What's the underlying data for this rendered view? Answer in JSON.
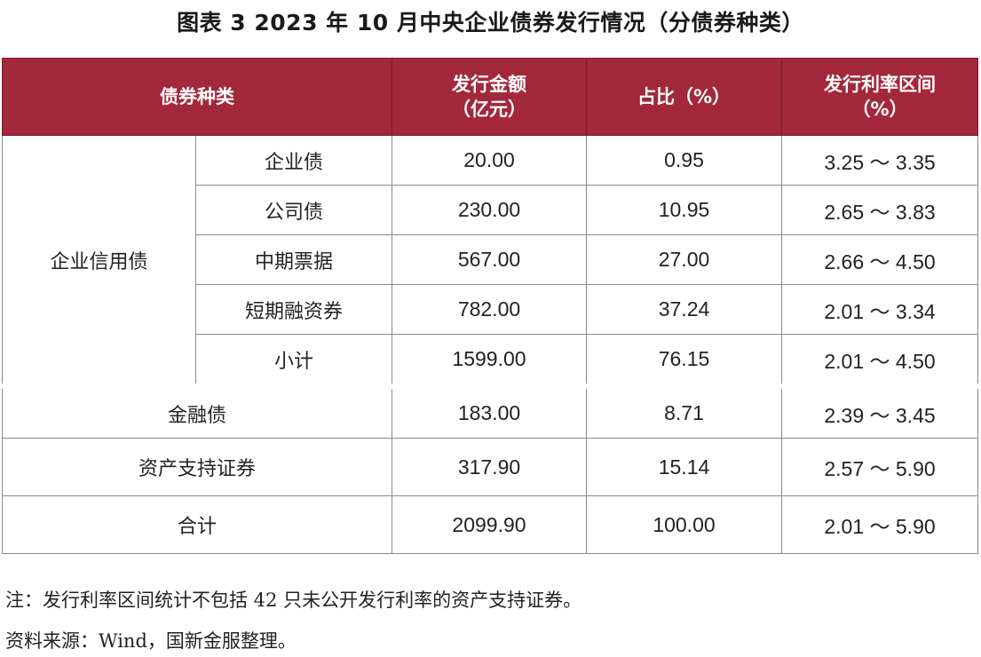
{
  "title": "图表 3  2023 年 10 月中央企业债券发行情况（分债券种类）",
  "header": {
    "category": "债券种类",
    "amount_line1": "发行金额",
    "amount_line2": "（亿元）",
    "share": "占比（%）",
    "rate_line1": "发行利率区间",
    "rate_line2": "（%）"
  },
  "group_label": "企业信用债",
  "rows": [
    {
      "name": "企业债",
      "amount": "20.00",
      "share": "0.95",
      "rate": "3.25 ～ 3.35"
    },
    {
      "name": "公司债",
      "amount": "230.00",
      "share": "10.95",
      "rate": "2.65 ～ 3.83"
    },
    {
      "name": "中期票据",
      "amount": "567.00",
      "share": "27.00",
      "rate": "2.66 ～ 4.50"
    },
    {
      "name": "短期融资券",
      "amount": "782.00",
      "share": "37.24",
      "rate": "2.01 ～ 3.34"
    },
    {
      "name": "小计",
      "amount": "1599.00",
      "share": "76.15",
      "rate": "2.01 ～ 4.50"
    },
    {
      "name": "金融债",
      "amount": "183.00",
      "share": "8.71",
      "rate": "2.39 ～ 3.45"
    },
    {
      "name": "资产支持证券",
      "amount": "317.90",
      "share": "15.14",
      "rate": "2.57 ～ 5.90"
    },
    {
      "name": "合计",
      "amount": "2099.90",
      "share": "100.00",
      "rate": "2.01 ～ 5.90"
    }
  ],
  "notes": {
    "note": "注：发行利率区间统计不包括 42 只未公开发行利率的资产支持证券。",
    "source": "资料来源：Wind，国新金服整理。"
  },
  "colors": {
    "header_bg": "#a3283b",
    "header_text": "#ffffff",
    "border": "#8a8a8a"
  }
}
